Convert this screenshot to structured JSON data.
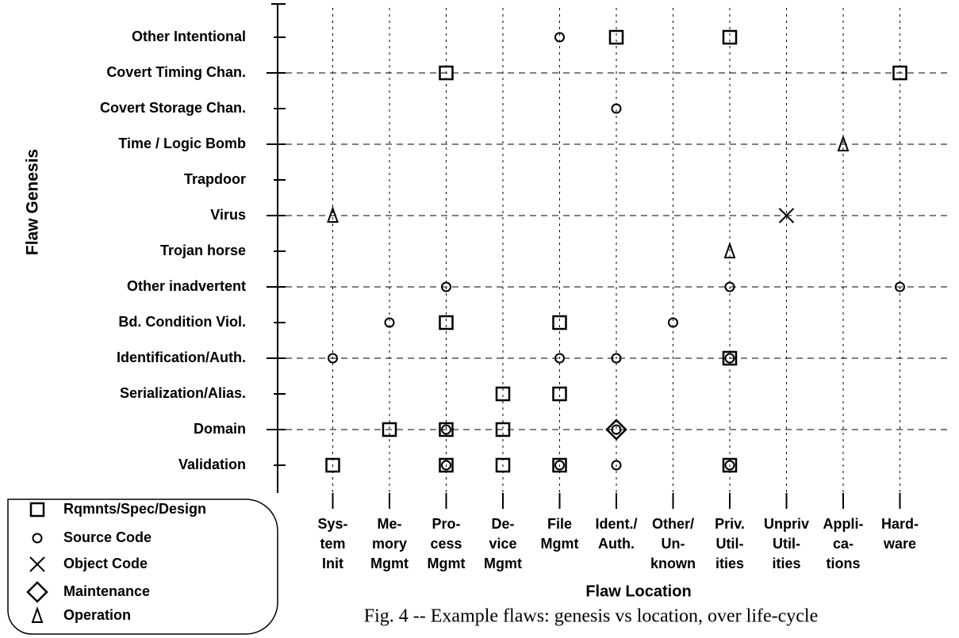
{
  "chart_data": {
    "type": "scatter",
    "caption": "Fig. 4 -- Example flaws:  genesis vs location, over life-cycle",
    "x_label": "Flaw Location",
    "y_label": "Flaw Genesis",
    "x_categories": [
      [
        "Sys-",
        "tem",
        "Init"
      ],
      [
        "Me-",
        "mory",
        "Mgmt"
      ],
      [
        "Pro-",
        "cess",
        "Mgmt"
      ],
      [
        "De-",
        "vice",
        "Mgmt"
      ],
      [
        "File",
        "Mgmt"
      ],
      [
        "Ident./",
        "Auth."
      ],
      [
        "Other/",
        "Un-",
        "known"
      ],
      [
        "Priv.",
        "Util-",
        "ities"
      ],
      [
        "Unpriv",
        "Util-",
        "ities"
      ],
      [
        "Appli-",
        "ca-",
        "tions"
      ],
      [
        "Hard-",
        "ware"
      ]
    ],
    "y_categories": [
      "Validation",
      "Domain",
      "Serialization/Alias.",
      "Identification/Auth.",
      "Bd. Condition Viol.",
      "Other inadvertent",
      "Trojan horse",
      "Virus",
      "Trapdoor",
      "Time / Logic Bomb",
      "Covert Storage Chan.",
      "Covert Timing Chan.",
      "Other Intentional"
    ],
    "grid": true,
    "legend": "bottom-left",
    "series": [
      {
        "name": "Rqmnts/Spec/Design",
        "marker": "square",
        "color": "#000000",
        "x": [
          5,
          7,
          2,
          10,
          2,
          4,
          7,
          3,
          4,
          1,
          2,
          3,
          0,
          2,
          3,
          4,
          7
        ],
        "y": [
          12,
          12,
          11,
          11,
          4,
          4,
          3,
          2,
          2,
          1,
          1,
          1,
          0,
          0,
          0,
          0,
          0
        ]
      },
      {
        "name": "Source Code",
        "marker": "circle",
        "color": "#000000",
        "x": [
          4,
          5,
          2,
          7,
          10,
          1,
          6,
          0,
          4,
          5,
          7,
          2,
          5,
          2,
          4,
          5,
          7
        ],
        "y": [
          12,
          10,
          5,
          5,
          5,
          4,
          4,
          3,
          3,
          3,
          3,
          1,
          1,
          0,
          0,
          0,
          0
        ]
      },
      {
        "name": "Object Code",
        "marker": "x",
        "color": "#000000",
        "x": [
          8
        ],
        "y": [
          7
        ]
      },
      {
        "name": "Maintenance",
        "marker": "diamond",
        "color": "#000000",
        "x": [
          5
        ],
        "y": [
          1
        ]
      },
      {
        "name": "Operation",
        "marker": "triangle",
        "color": "#000000",
        "x": [
          9,
          0,
          7
        ],
        "y": [
          9,
          7,
          6
        ]
      }
    ]
  }
}
